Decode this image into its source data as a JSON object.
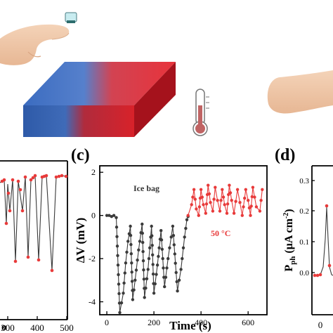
{
  "panels": {
    "c_label": "(c)",
    "d_label": "(d)"
  },
  "left_panel": {
    "x_ticks": [
      "300",
      "400",
      "500"
    ],
    "x_label_fragment": "o"
  },
  "center_panel": {
    "annotation_cold": "Ice bag",
    "annotation_hot": "50 °C"
  },
  "right_panel": {
    "y_ticks": [
      "0.3",
      "0.2",
      "0.1",
      "0.0"
    ],
    "x_ticks": [
      "0"
    ]
  },
  "colors": {
    "cold_series": "#3a3a3a",
    "hot_series": "#e83a3a",
    "block_blue": "#2e5aa8",
    "block_red": "#d8222a",
    "skin": "#f0c7a8"
  },
  "chart_data": {
    "type": "line",
    "title": "",
    "xlabel": "Time (s)",
    "ylabel": "ΔV (mV)",
    "xlim": [
      -30,
      680
    ],
    "ylim": [
      -4.6,
      2.3
    ],
    "xticks": [
      0,
      200,
      400,
      600
    ],
    "yticks": [
      2,
      0,
      -2,
      -4
    ],
    "grid": false,
    "series": [
      {
        "points": [
          [
            0,
            0.0
          ],
          [
            10,
            0.0
          ],
          [
            20,
            -0.05
          ],
          [
            30,
            0.0
          ],
          [
            40,
            -0.1
          ],
          [
            55,
            -4.5
          ],
          [
            70,
            -3.6
          ],
          [
            80,
            -2.2
          ],
          [
            90,
            -1.2
          ],
          [
            100,
            -0.5
          ],
          [
            110,
            -3.9
          ],
          [
            120,
            -3.0
          ],
          [
            135,
            -1.6
          ],
          [
            150,
            -0.4
          ],
          [
            160,
            -3.8
          ],
          [
            175,
            -2.5
          ],
          [
            190,
            -0.5
          ],
          [
            200,
            -3.6
          ],
          [
            215,
            -2.3
          ],
          [
            230,
            -0.7
          ],
          [
            245,
            -3.3
          ],
          [
            260,
            -2.0
          ],
          [
            280,
            -0.5
          ],
          [
            300,
            -3.5
          ],
          [
            315,
            -2.5
          ],
          [
            330,
            -1.0
          ],
          [
            340,
            -0.2
          ],
          [
            345,
            -0.05
          ]
        ]
      },
      {
        "points": [
          [
            345,
            0.0
          ],
          [
            360,
            0.5
          ],
          [
            370,
            1.2
          ],
          [
            380,
            0.3
          ],
          [
            390,
            0.0
          ],
          [
            400,
            1.2
          ],
          [
            410,
            0.5
          ],
          [
            420,
            0.1
          ],
          [
            430,
            1.4
          ],
          [
            440,
            0.6
          ],
          [
            450,
            0.2
          ],
          [
            460,
            1.3
          ],
          [
            470,
            0.7
          ],
          [
            480,
            0.2
          ],
          [
            490,
            1.2
          ],
          [
            500,
            0.5
          ],
          [
            510,
            0.1
          ],
          [
            520,
            1.4
          ],
          [
            530,
            0.7
          ],
          [
            540,
            0.1
          ],
          [
            555,
            1.2
          ],
          [
            565,
            0.6
          ],
          [
            575,
            0.0
          ],
          [
            590,
            1.2
          ],
          [
            600,
            0.7
          ],
          [
            610,
            0.0
          ],
          [
            620,
            1.3
          ],
          [
            635,
            0.4
          ],
          [
            650,
            0.2
          ],
          [
            660,
            1.2
          ]
        ]
      }
    ]
  }
}
